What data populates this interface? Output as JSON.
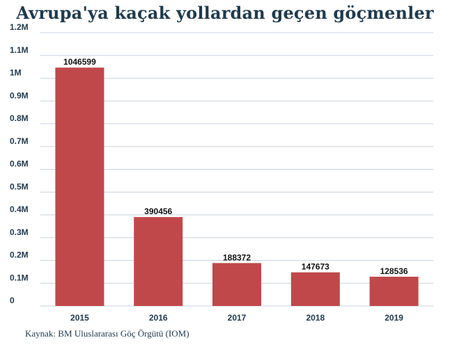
{
  "colors": {
    "bar": "#c0484b",
    "grid": "#c9d3dc",
    "text": "#1f3a4d"
  },
  "source": "Kaynak: BM Uluslararası Göç Örgütü (IOM)",
  "chart_data": {
    "type": "bar",
    "title": "Avrupa'ya kaçak yollardan geçen göçmenler",
    "xlabel": "",
    "ylabel": "",
    "categories": [
      "2015",
      "2016",
      "2017",
      "2018",
      "2019"
    ],
    "values": [
      1046599,
      390456,
      188372,
      147673,
      128536
    ],
    "data_labels": [
      "1046599",
      "390456",
      "188372",
      "147673",
      "128536"
    ],
    "ylim": [
      0,
      1200000
    ],
    "yticks": [
      {
        "value": 0,
        "label": "0"
      },
      {
        "value": 100000,
        "label": "0.1M"
      },
      {
        "value": 200000,
        "label": "0.2M"
      },
      {
        "value": 300000,
        "label": "0.3M"
      },
      {
        "value": 400000,
        "label": "0.4M"
      },
      {
        "value": 500000,
        "label": "0.5M"
      },
      {
        "value": 600000,
        "label": "0.6M"
      },
      {
        "value": 700000,
        "label": "0.7M"
      },
      {
        "value": 800000,
        "label": "0.8M"
      },
      {
        "value": 900000,
        "label": "0.9M"
      },
      {
        "value": 1000000,
        "label": "1M"
      },
      {
        "value": 1100000,
        "label": "1.1M"
      },
      {
        "value": 1200000,
        "label": "1.2M"
      }
    ],
    "grid": true
  }
}
